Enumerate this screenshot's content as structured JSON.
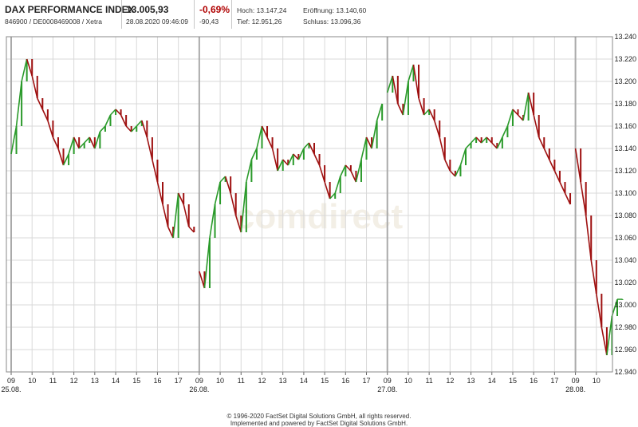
{
  "header": {
    "name": "DAX PERFORMANCE INDEX",
    "ident": "846900 / DE0008469008 / Xetra",
    "price": "13.005,93",
    "datetime": "28.08.2020 09:46:09",
    "change_pct": "-0,69%",
    "change_abs": "-90,43",
    "high": "Hoch: 13.147,24",
    "low": "Tief: 12.951,26",
    "open": "Eröffnung: 13.140,60",
    "close": "Schluss: 13.096,36"
  },
  "watermark": "comdirect",
  "footer": {
    "line1": "© 1996-2020 FactSet Digital Solutions GmbH, all rights reserved.",
    "line2": "Implemented and powered by FactSet Digital Solutions GmbH."
  },
  "colors": {
    "up": "#2a9a2a",
    "down": "#9e1010",
    "grid": "#d9d9d9",
    "watermark": "#f3efe6"
  },
  "chart_data": {
    "type": "line",
    "subtype": "intraday candlestick",
    "grid": true,
    "ylim": [
      12940,
      13240
    ],
    "yticks": [
      "12.940",
      "12.960",
      "12.980",
      "13.000",
      "13.020",
      "13.040",
      "13.060",
      "13.080",
      "13.100",
      "13.120",
      "13.140",
      "13.160",
      "13.180",
      "13.200",
      "13.220",
      "13.240"
    ],
    "xticks": [
      "09",
      "10",
      "11",
      "12",
      "13",
      "14",
      "15",
      "16",
      "17",
      "09",
      "10",
      "11",
      "12",
      "13",
      "14",
      "15",
      "16",
      "17",
      "09",
      "10",
      "11",
      "12",
      "13",
      "14",
      "15",
      "16",
      "17",
      "09",
      "10"
    ],
    "day_labels": [
      "25.08.",
      "26.08.",
      "27.08.",
      "28.08."
    ],
    "days": [
      {
        "date": "25.08.",
        "values": [
          13135,
          13160,
          13200,
          13220,
          13205,
          13185,
          13175,
          13165,
          13150,
          13140,
          13125,
          13135,
          13150,
          13140,
          13145,
          13150,
          13140,
          13155,
          13160,
          13170,
          13175,
          13170,
          13160,
          13155,
          13160,
          13165,
          13150,
          13130,
          13110,
          13090,
          13070,
          13060,
          13100,
          13090,
          13070,
          13065
        ]
      },
      {
        "date": "26.08.",
        "values": [
          13030,
          13015,
          13060,
          13090,
          13110,
          13115,
          13100,
          13080,
          13065,
          13110,
          13130,
          13140,
          13160,
          13150,
          13140,
          13120,
          13130,
          13125,
          13135,
          13130,
          13140,
          13145,
          13135,
          13125,
          13110,
          13095,
          13100,
          13115,
          13125,
          13120,
          13110,
          13130,
          13150,
          13140,
          13165,
          13180
        ]
      },
      {
        "date": "27.08.",
        "values": [
          13190,
          13205,
          13180,
          13170,
          13200,
          13215,
          13185,
          13170,
          13175,
          13165,
          13150,
          13130,
          13120,
          13115,
          13125,
          13140,
          13145,
          13150,
          13145,
          13150,
          13145,
          13140,
          13150,
          13160,
          13175,
          13170,
          13165,
          13190,
          13170,
          13150,
          13140,
          13130,
          13120,
          13110,
          13100,
          13090
        ]
      },
      {
        "date": "28.08.",
        "values": [
          13140,
          13110,
          13080,
          13040,
          13010,
          12980,
          12955,
          12990,
          13005,
          13005
        ]
      }
    ]
  }
}
